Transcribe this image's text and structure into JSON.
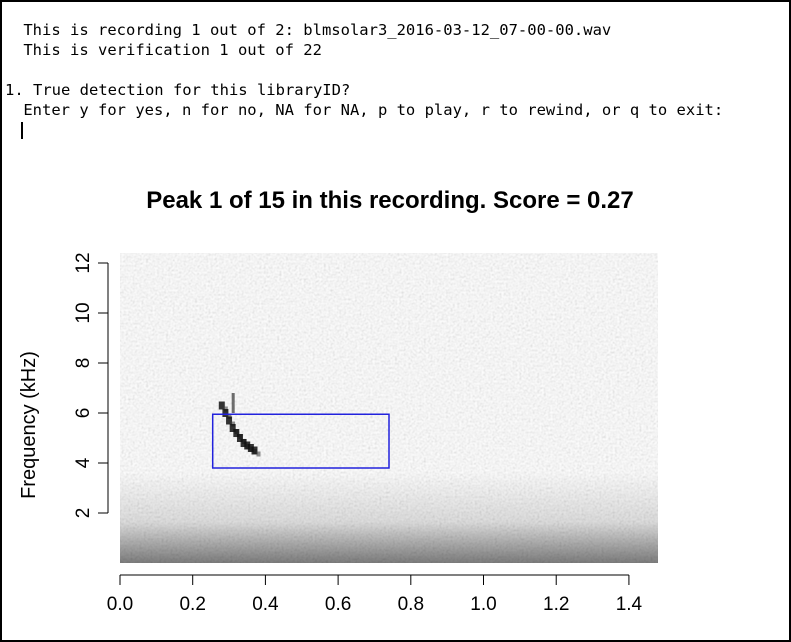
{
  "console": {
    "line1": " This is recording 1 out of 2: blmsolar3_2016-03-12_07-00-00.wav",
    "line2": " This is verification 1 out of 22",
    "line3": "1. True detection for this libraryID?",
    "line4": " Enter y for yes, n for no, NA for NA, p to play, r to rewind, or q to exit:"
  },
  "chart_data": {
    "type": "heatmap",
    "title": "Peak 1 of 15 in this recording. Score =  0.27",
    "xlabel": "",
    "ylabel": "Frequency (kHz)",
    "xlim": [
      0.0,
      1.48
    ],
    "ylim": [
      0.0,
      12.4
    ],
    "x_ticks": [
      "0.0",
      "0.2",
      "0.4",
      "0.6",
      "0.8",
      "1.0",
      "1.2",
      "1.4"
    ],
    "x_tick_values": [
      0.0,
      0.2,
      0.4,
      0.6,
      0.8,
      1.0,
      1.2,
      1.4
    ],
    "y_ticks": [
      "2",
      "4",
      "6",
      "8",
      "10",
      "12"
    ],
    "y_tick_values": [
      2,
      4,
      6,
      8,
      10,
      12
    ],
    "detection_box": {
      "x_start": 0.255,
      "x_end": 0.74,
      "y_start": 3.8,
      "y_end": 5.95,
      "color": "#2222dd"
    },
    "call_trace": {
      "x": [
        0.28,
        0.29,
        0.3,
        0.31,
        0.32,
        0.33,
        0.34,
        0.35,
        0.36,
        0.37
      ],
      "y": [
        6.3,
        6.0,
        5.7,
        5.4,
        5.2,
        5.0,
        4.8,
        4.7,
        4.6,
        4.5
      ]
    },
    "grid": false,
    "colormap": "grayscale"
  }
}
